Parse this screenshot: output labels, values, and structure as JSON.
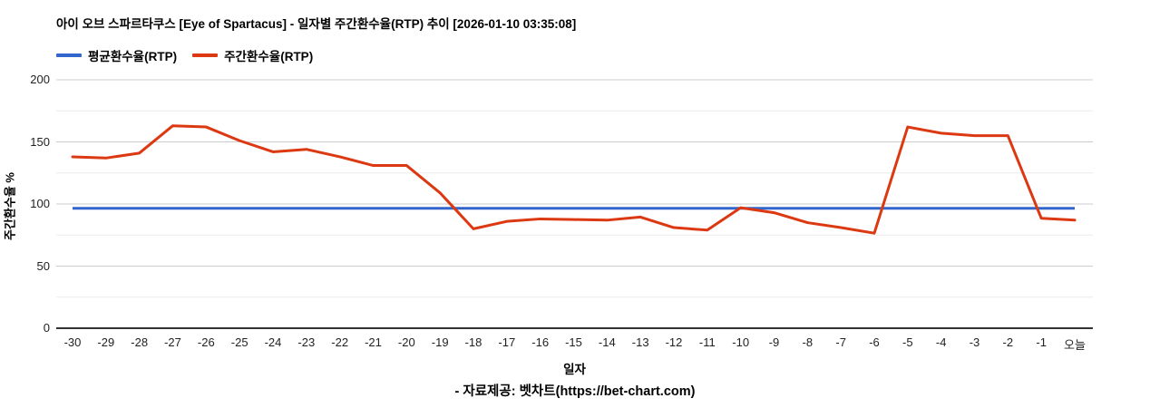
{
  "header": {
    "title": "아이 오브 스파르타쿠스 [Eye of Spartacus] - 일자별 주간환수율(RTP) 추이 [2026-01-10 03:35:08]"
  },
  "footer": {
    "text": "- 자료제공: 벳차트(https://bet-chart.com)"
  },
  "colors": {
    "average_line": "#3366cc",
    "weekly_line": "#dc3912",
    "major_gridline": "#cccccc",
    "minor_gridline": "#ebebeb",
    "axis_line": "#333333"
  },
  "chart_data": {
    "type": "line",
    "title": "아이 오브 스파르타쿠스 [Eye of Spartacus] - 일자별 주간환수율(RTP) 추이 [2026-01-10 03:35:08]",
    "xlabel": "일자",
    "ylabel": "주간환수율 %",
    "ylim": [
      0,
      200
    ],
    "yticks": [
      0,
      50,
      100,
      150,
      200
    ],
    "grid": true,
    "legend_position": "top-left",
    "categories": [
      "-30",
      "-29",
      "-28",
      "-27",
      "-26",
      "-25",
      "-24",
      "-23",
      "-22",
      "-21",
      "-20",
      "-19",
      "-18",
      "-17",
      "-16",
      "-15",
      "-14",
      "-13",
      "-12",
      "-11",
      "-10",
      "-9",
      "-8",
      "-7",
      "-6",
      "-5",
      "-4",
      "-3",
      "-2",
      "-1",
      "오늘"
    ],
    "series": [
      {
        "name": "평균환수율(RTP)",
        "color": "#3366cc",
        "constant": 96.5
      },
      {
        "name": "주간환수율(RTP)",
        "color": "#dc3912",
        "values": [
          138,
          137,
          141,
          163,
          162,
          151,
          142,
          144,
          138,
          131,
          131,
          109,
          80,
          86,
          88,
          87.5,
          87,
          89.5,
          81,
          79,
          97,
          93,
          85,
          81,
          76.5,
          162,
          157,
          155,
          155,
          88.5,
          87
        ]
      }
    ]
  }
}
